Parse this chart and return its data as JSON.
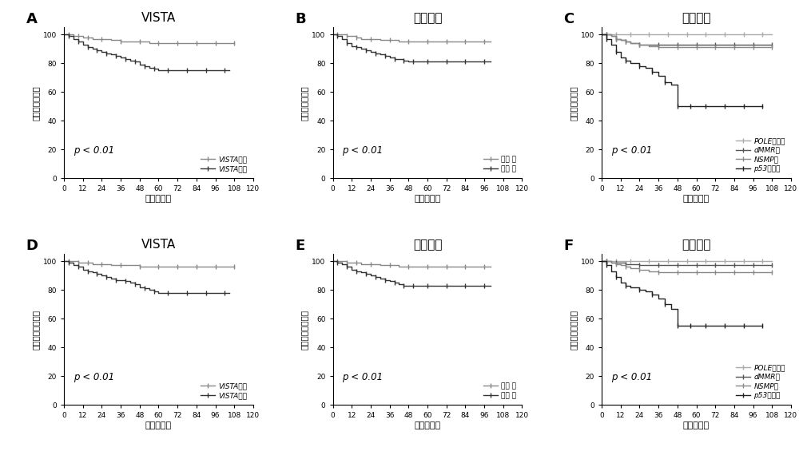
{
  "panel_labels": [
    "A",
    "B",
    "C",
    "D",
    "E",
    "F"
  ],
  "titles_top": [
    "VISTA",
    "肿瘾级别",
    "分子分型"
  ],
  "titles_bottom": [
    "VISTA",
    "肿瘾级别",
    "分子分型"
  ],
  "ylabel_top": "无复发生存概率",
  "ylabel_bottom": "疾病特异生存概率",
  "xlabel": "时间（月）",
  "pvalue_text": "p < 0.01",
  "xticks": [
    0,
    12,
    24,
    36,
    48,
    60,
    72,
    84,
    96,
    108,
    120
  ],
  "yticks": [
    0,
    20,
    40,
    60,
    80,
    100
  ],
  "xlim": [
    0,
    120
  ],
  "ylim": [
    0,
    105
  ],
  "A_pos_x": [
    0,
    3,
    6,
    9,
    12,
    15,
    18,
    24,
    30,
    36,
    42,
    48,
    54,
    60,
    66,
    72,
    78,
    84,
    90,
    96,
    102,
    108
  ],
  "A_pos_y": [
    100,
    100,
    99,
    99,
    98,
    98,
    97,
    97,
    96,
    95,
    95,
    95,
    94,
    94,
    94,
    94,
    94,
    94,
    94,
    94,
    94,
    94
  ],
  "A_neg_x": [
    0,
    3,
    6,
    9,
    12,
    15,
    18,
    21,
    24,
    27,
    30,
    33,
    36,
    39,
    42,
    45,
    48,
    51,
    54,
    57,
    60,
    66,
    72,
    78,
    84,
    90,
    96,
    102,
    105
  ],
  "A_neg_y": [
    100,
    99,
    97,
    95,
    93,
    91,
    90,
    89,
    88,
    87,
    86,
    85,
    84,
    83,
    82,
    81,
    79,
    78,
    77,
    76,
    75,
    75,
    75,
    75,
    75,
    75,
    75,
    75,
    75
  ],
  "B_low_x": [
    0,
    3,
    6,
    9,
    12,
    15,
    18,
    24,
    30,
    36,
    42,
    48,
    54,
    60,
    66,
    72,
    78,
    84,
    90,
    96,
    100
  ],
  "B_low_y": [
    100,
    100,
    100,
    99,
    99,
    98,
    97,
    97,
    96,
    96,
    95,
    95,
    95,
    95,
    95,
    95,
    95,
    95,
    95,
    95,
    95
  ],
  "B_high_x": [
    0,
    3,
    6,
    9,
    12,
    15,
    18,
    21,
    24,
    27,
    30,
    33,
    36,
    39,
    42,
    45,
    48,
    51,
    54,
    60,
    66,
    72,
    78,
    84,
    90,
    96,
    100
  ],
  "B_high_y": [
    100,
    99,
    97,
    94,
    92,
    91,
    90,
    89,
    88,
    87,
    86,
    85,
    84,
    83,
    83,
    82,
    81,
    81,
    81,
    81,
    81,
    81,
    81,
    81,
    81,
    81,
    81
  ],
  "C_POLE_x": [
    0,
    3,
    6,
    9,
    12,
    18,
    24,
    30,
    36,
    42,
    48,
    54,
    60,
    66,
    72,
    78,
    84,
    90,
    96,
    102,
    108
  ],
  "C_POLE_y": [
    100,
    100,
    100,
    100,
    100,
    100,
    100,
    100,
    100,
    100,
    100,
    100,
    100,
    100,
    100,
    100,
    100,
    100,
    100,
    100,
    100
  ],
  "C_dMMR_x": [
    0,
    3,
    6,
    9,
    12,
    15,
    18,
    24,
    30,
    36,
    42,
    48,
    54,
    60,
    66,
    72,
    78,
    84,
    90,
    96,
    102,
    108
  ],
  "C_dMMR_y": [
    100,
    100,
    99,
    97,
    96,
    95,
    94,
    93,
    93,
    93,
    93,
    93,
    93,
    93,
    93,
    93,
    93,
    93,
    93,
    93,
    93,
    93
  ],
  "C_NSMP_x": [
    0,
    3,
    6,
    9,
    12,
    15,
    18,
    24,
    30,
    36,
    42,
    48,
    54,
    60,
    66,
    72,
    78,
    84,
    90,
    96,
    102,
    108
  ],
  "C_NSMP_y": [
    100,
    100,
    99,
    97,
    96,
    95,
    94,
    93,
    92,
    91,
    91,
    91,
    91,
    91,
    91,
    91,
    91,
    91,
    91,
    91,
    91,
    91
  ],
  "C_p53_x": [
    0,
    3,
    6,
    9,
    12,
    15,
    18,
    24,
    28,
    32,
    36,
    40,
    44,
    48,
    52,
    56,
    60,
    66,
    72,
    78,
    84,
    90,
    96,
    102
  ],
  "C_p53_y": [
    100,
    97,
    93,
    88,
    84,
    82,
    80,
    78,
    77,
    74,
    71,
    67,
    65,
    50,
    50,
    50,
    50,
    50,
    50,
    50,
    50,
    50,
    50,
    50
  ],
  "D_pos_x": [
    0,
    3,
    6,
    9,
    12,
    15,
    18,
    24,
    30,
    36,
    42,
    48,
    54,
    60,
    66,
    72,
    78,
    84,
    90,
    96,
    102,
    108
  ],
  "D_pos_y": [
    100,
    100,
    100,
    99,
    99,
    99,
    98,
    98,
    97,
    97,
    97,
    96,
    96,
    96,
    96,
    96,
    96,
    96,
    96,
    96,
    96,
    96
  ],
  "D_neg_x": [
    0,
    3,
    6,
    9,
    12,
    15,
    18,
    21,
    24,
    27,
    30,
    33,
    36,
    39,
    42,
    45,
    48,
    51,
    54,
    57,
    60,
    66,
    72,
    78,
    84,
    90,
    96,
    102,
    105
  ],
  "D_neg_y": [
    100,
    99,
    97,
    96,
    94,
    93,
    92,
    91,
    90,
    89,
    88,
    87,
    87,
    86,
    85,
    84,
    82,
    81,
    80,
    79,
    78,
    78,
    78,
    78,
    78,
    78,
    78,
    78,
    78
  ],
  "E_low_x": [
    0,
    3,
    6,
    9,
    12,
    15,
    18,
    24,
    30,
    36,
    42,
    48,
    54,
    60,
    66,
    72,
    78,
    84,
    90,
    96,
    100
  ],
  "E_low_y": [
    100,
    100,
    100,
    99,
    99,
    99,
    98,
    98,
    97,
    97,
    96,
    96,
    96,
    96,
    96,
    96,
    96,
    96,
    96,
    96,
    96
  ],
  "E_high_x": [
    0,
    3,
    6,
    9,
    12,
    15,
    18,
    21,
    24,
    27,
    30,
    33,
    36,
    39,
    42,
    45,
    48,
    51,
    54,
    60,
    66,
    72,
    78,
    84,
    90,
    96,
    100
  ],
  "E_high_y": [
    100,
    99,
    98,
    96,
    94,
    93,
    92,
    91,
    90,
    89,
    88,
    87,
    86,
    85,
    84,
    83,
    83,
    83,
    83,
    83,
    83,
    83,
    83,
    83,
    83,
    83,
    83
  ],
  "F_POLE_x": [
    0,
    3,
    6,
    9,
    12,
    18,
    24,
    30,
    36,
    42,
    48,
    54,
    60,
    66,
    72,
    78,
    84,
    90,
    96,
    102,
    108
  ],
  "F_POLE_y": [
    100,
    100,
    100,
    100,
    100,
    100,
    100,
    100,
    100,
    100,
    100,
    100,
    100,
    100,
    100,
    100,
    100,
    100,
    100,
    100,
    100
  ],
  "F_dMMR_x": [
    0,
    3,
    6,
    9,
    12,
    15,
    18,
    24,
    30,
    36,
    42,
    48,
    54,
    60,
    66,
    72,
    78,
    84,
    90,
    96,
    102,
    108
  ],
  "F_dMMR_y": [
    100,
    100,
    99,
    99,
    99,
    98,
    98,
    97,
    97,
    97,
    97,
    97,
    97,
    97,
    97,
    97,
    97,
    97,
    97,
    97,
    97,
    97
  ],
  "F_NSMP_x": [
    0,
    3,
    6,
    9,
    12,
    15,
    18,
    24,
    30,
    36,
    42,
    48,
    54,
    60,
    66,
    72,
    78,
    84,
    90,
    96,
    102,
    108
  ],
  "F_NSMP_y": [
    100,
    100,
    99,
    98,
    97,
    96,
    95,
    94,
    93,
    92,
    92,
    92,
    92,
    92,
    92,
    92,
    92,
    92,
    92,
    92,
    92,
    92
  ],
  "F_p53_x": [
    0,
    3,
    6,
    9,
    12,
    15,
    18,
    24,
    28,
    32,
    36,
    40,
    44,
    48,
    52,
    56,
    60,
    66,
    72,
    78,
    84,
    90,
    96,
    102
  ],
  "F_p53_y": [
    100,
    97,
    93,
    89,
    85,
    83,
    82,
    80,
    79,
    77,
    74,
    70,
    67,
    55,
    55,
    55,
    55,
    55,
    55,
    55,
    55,
    55,
    55,
    55
  ],
  "color_pos": "#888888",
  "color_neg": "#333333",
  "color_low": "#888888",
  "color_high": "#333333",
  "color_POLE": "#aaaaaa",
  "color_dMMR": "#555555",
  "color_NSMP": "#888888",
  "color_p53": "#222222"
}
